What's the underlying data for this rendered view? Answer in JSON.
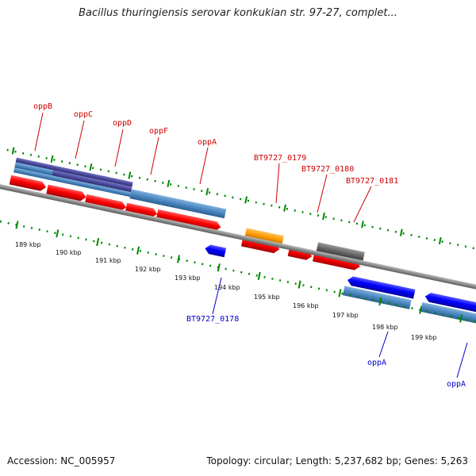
{
  "title": "Bacillus thuringiensis serovar konkukian str. 97-27, complet...",
  "footer": {
    "accession": "Accession: NC_005957",
    "topology": "Topology: circular; Length: 5,237,682 bp; Genes: 5,263"
  },
  "colors": {
    "forward_cds": "#ff0000",
    "reverse_cds": "#0000ff",
    "gene_steel": "#4a86c0",
    "gene_purple": "#4b4b9e",
    "gene_orange": "#ff9900",
    "gene_gray": "#666666",
    "backbone": "#888888",
    "tick_green": "#008800"
  },
  "ticks": {
    "labels": [
      "189 kbp",
      "190 kbp",
      "191 kbp",
      "192 kbp",
      "193 kbp",
      "194 kbp",
      "195 kbp",
      "196 kbp",
      "197 kbp",
      "198 kbp",
      "199 kbp"
    ]
  },
  "labels": {
    "forward": [
      "oppB",
      "oppC",
      "oppD",
      "oppF",
      "oppA",
      "BT9727_0179",
      "BT9727_0180",
      "BT9727_0181"
    ],
    "reverse": [
      "BT9727_0178",
      "oppA",
      "oppA"
    ]
  }
}
